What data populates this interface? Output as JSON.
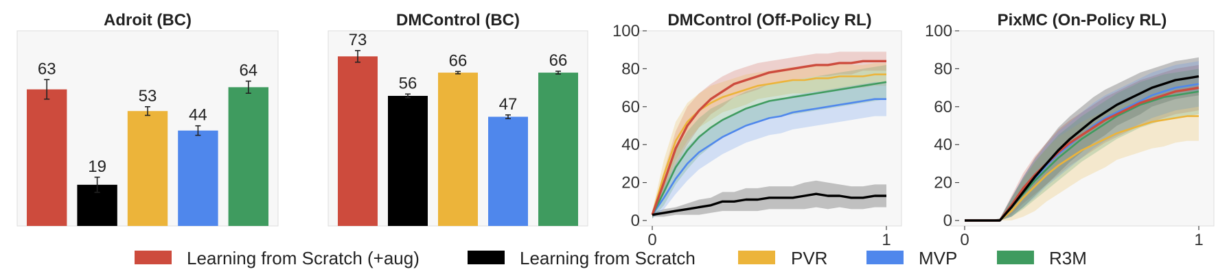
{
  "chart_data": [
    {
      "type": "bar",
      "title": "Adroit (BC)",
      "categories": [
        "Learning from Scratch (+aug)",
        "Learning from Scratch",
        "PVR",
        "MVP",
        "R3M"
      ],
      "values": [
        63,
        19,
        53,
        44,
        64
      ],
      "errors": [
        4.5,
        3.5,
        2.0,
        2.2,
        2.8
      ],
      "ylim": [
        0,
        90
      ],
      "grid": false
    },
    {
      "type": "bar",
      "title": "DMControl (BC)",
      "categories": [
        "Learning from Scratch (+aug)",
        "Learning from Scratch",
        "PVR",
        "MVP",
        "R3M"
      ],
      "values": [
        73,
        56,
        66,
        47,
        66
      ],
      "errors": [
        2.5,
        0.8,
        0.5,
        0.8,
        0.6
      ],
      "ylim": [
        0,
        84
      ],
      "grid": false
    },
    {
      "type": "line",
      "title": "DMControl (Off-Policy RL)",
      "xlim": [
        0,
        1
      ],
      "ylim": [
        0,
        100
      ],
      "xticks": [
        "0",
        "1"
      ],
      "yticks": [
        "0",
        "20",
        "40",
        "60",
        "80",
        "100"
      ],
      "x": [
        0,
        0.05,
        0.1,
        0.15,
        0.2,
        0.25,
        0.3,
        0.35,
        0.4,
        0.45,
        0.5,
        0.55,
        0.6,
        0.65,
        0.7,
        0.75,
        0.8,
        0.85,
        0.9,
        0.95,
        1.0
      ],
      "series": [
        {
          "name": "Learning from Scratch (+aug)",
          "color": "#cd4b3d",
          "values": [
            3,
            20,
            38,
            50,
            58,
            64,
            68,
            72,
            74,
            76,
            78,
            79,
            80,
            81,
            82,
            82,
            83,
            83,
            84,
            84,
            84
          ],
          "spread": [
            2,
            6,
            9,
            10,
            9,
            8,
            8,
            7,
            7,
            7,
            6,
            6,
            6,
            6,
            6,
            6,
            6,
            6,
            5,
            5,
            5
          ]
        },
        {
          "name": "Learning from Scratch",
          "color": "#000000",
          "values": [
            3,
            4,
            5,
            6,
            7,
            8,
            10,
            10,
            11,
            11,
            12,
            12,
            12,
            13,
            14,
            13,
            13,
            12,
            12,
            13,
            13
          ],
          "spread": [
            1,
            2,
            2,
            3,
            4,
            4,
            5,
            5,
            6,
            6,
            6,
            6,
            6,
            7,
            7,
            7,
            6,
            6,
            6,
            6,
            6
          ]
        },
        {
          "name": "PVR",
          "color": "#ecb43a",
          "values": [
            3,
            24,
            42,
            52,
            58,
            62,
            65,
            67,
            69,
            71,
            72,
            73,
            74,
            74,
            75,
            75,
            76,
            76,
            76,
            77,
            77
          ],
          "spread": [
            2,
            8,
            10,
            10,
            9,
            9,
            8,
            8,
            8,
            7,
            7,
            7,
            7,
            7,
            7,
            7,
            7,
            6,
            6,
            6,
            6
          ]
        },
        {
          "name": "MVP",
          "color": "#4f87ec",
          "values": [
            3,
            12,
            22,
            30,
            36,
            40,
            44,
            47,
            50,
            52,
            54,
            55,
            57,
            58,
            59,
            60,
            61,
            62,
            63,
            64,
            64
          ],
          "spread": [
            2,
            6,
            8,
            9,
            9,
            9,
            9,
            9,
            9,
            9,
            9,
            9,
            9,
            9,
            9,
            9,
            9,
            9,
            9,
            9,
            9
          ]
        },
        {
          "name": "R3M",
          "color": "#3f9b5f",
          "values": [
            3,
            15,
            28,
            37,
            44,
            49,
            53,
            56,
            59,
            61,
            63,
            64,
            65,
            66,
            67,
            68,
            69,
            70,
            71,
            72,
            73
          ],
          "spread": [
            2,
            7,
            9,
            10,
            10,
            10,
            9,
            9,
            9,
            9,
            9,
            9,
            9,
            9,
            9,
            9,
            9,
            9,
            9,
            9,
            9
          ]
        }
      ]
    },
    {
      "type": "line",
      "title": "PixMC (On-Policy RL)",
      "xlim": [
        0,
        1
      ],
      "ylim": [
        0,
        100
      ],
      "xticks": [
        "0",
        "1"
      ],
      "yticks": [
        "0",
        "20",
        "40",
        "60",
        "80",
        "100"
      ],
      "x": [
        0,
        0.05,
        0.1,
        0.15,
        0.2,
        0.25,
        0.3,
        0.35,
        0.4,
        0.45,
        0.5,
        0.55,
        0.6,
        0.65,
        0.7,
        0.75,
        0.8,
        0.85,
        0.9,
        0.95,
        1.0
      ],
      "series": [
        {
          "name": "Learning from Scratch (+aug)",
          "color": "#cd4b3d",
          "values": [
            0,
            0,
            0,
            0,
            8,
            17,
            24,
            30,
            36,
            41,
            45,
            49,
            53,
            56,
            59,
            62,
            64,
            66,
            68,
            69,
            70
          ],
          "spread": [
            0,
            0,
            0,
            1,
            5,
            8,
            10,
            11,
            12,
            12,
            12,
            12,
            12,
            12,
            12,
            12,
            12,
            12,
            12,
            12,
            12
          ]
        },
        {
          "name": "Learning from Scratch",
          "color": "#000000",
          "values": [
            0,
            0,
            0,
            0,
            7,
            15,
            23,
            30,
            37,
            43,
            48,
            53,
            57,
            61,
            64,
            67,
            70,
            72,
            74,
            75,
            76
          ],
          "spread": [
            0,
            0,
            0,
            1,
            5,
            8,
            10,
            11,
            12,
            12,
            12,
            12,
            12,
            11,
            11,
            11,
            10,
            10,
            10,
            10,
            10
          ]
        },
        {
          "name": "PVR",
          "color": "#ecb43a",
          "values": [
            0,
            0,
            0,
            0,
            5,
            12,
            18,
            24,
            29,
            33,
            37,
            40,
            43,
            46,
            48,
            50,
            52,
            53,
            54,
            55,
            55
          ],
          "spread": [
            0,
            0,
            0,
            1,
            6,
            10,
            13,
            14,
            15,
            15,
            15,
            15,
            15,
            14,
            14,
            14,
            14,
            14,
            13,
            13,
            13
          ]
        },
        {
          "name": "MVP",
          "color": "#4f87ec",
          "values": [
            0,
            0,
            0,
            0,
            7,
            15,
            22,
            29,
            35,
            40,
            45,
            50,
            54,
            57,
            60,
            63,
            66,
            68,
            70,
            71,
            72
          ],
          "spread": [
            0,
            0,
            0,
            1,
            5,
            8,
            10,
            11,
            12,
            12,
            12,
            12,
            12,
            12,
            12,
            12,
            12,
            12,
            12,
            12,
            12
          ]
        },
        {
          "name": "R3M",
          "color": "#3f9b5f",
          "values": [
            0,
            0,
            0,
            0,
            7,
            14,
            21,
            27,
            33,
            38,
            43,
            47,
            51,
            55,
            58,
            61,
            63,
            65,
            66,
            67,
            68
          ],
          "spread": [
            0,
            0,
            0,
            1,
            5,
            8,
            10,
            11,
            12,
            12,
            12,
            12,
            12,
            12,
            12,
            12,
            12,
            12,
            12,
            12,
            12
          ]
        }
      ]
    }
  ],
  "legend": {
    "placement": "bottom",
    "entries": [
      {
        "label": "Learning from Scratch (+aug)",
        "color": "#cd4b3d"
      },
      {
        "label": "Learning from Scratch",
        "color": "#000000"
      },
      {
        "label": "PVR",
        "color": "#ecb43a"
      },
      {
        "label": "MVP",
        "color": "#4f87ec"
      },
      {
        "label": "R3M",
        "color": "#3f9b5f"
      }
    ]
  }
}
